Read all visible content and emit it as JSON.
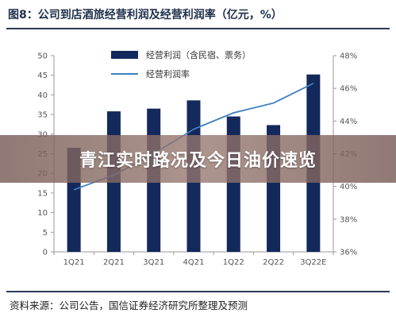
{
  "figure_title": "图8：公司到店酒旅经营利润及经营利润率（亿元，%）",
  "source": "资料来源：公司公告，国信证券经济研究所整理及预测",
  "overlay_banner": "青江实时路况及今日油价速览",
  "colors": {
    "bar": "#13295b",
    "line": "#3d7fbd",
    "rule": "#2a3b5a"
  },
  "chart_data": {
    "type": "bar",
    "categories": [
      "1Q21",
      "2Q21",
      "3Q21",
      "4Q21",
      "1Q22",
      "2Q22",
      "3Q22E"
    ],
    "series": [
      {
        "name": "经营利润（含民宿、票务）",
        "type": "bar",
        "axis": "left",
        "values": [
          26.5,
          35.8,
          36.5,
          38.6,
          34.5,
          32.3,
          45.2
        ]
      },
      {
        "name": "经营利润率",
        "type": "line",
        "axis": "right",
        "values": [
          39.8,
          40.7,
          42.0,
          43.5,
          44.5,
          45.1,
          46.3
        ]
      }
    ],
    "y_left": {
      "min": 0,
      "max": 50,
      "ticks": [
        0,
        5,
        10,
        15,
        20,
        25,
        30,
        35,
        40,
        45,
        50
      ]
    },
    "y_right": {
      "min": 36,
      "max": 48,
      "ticks": [
        "36%",
        "38%",
        "40%",
        "42%",
        "44%",
        "46%",
        "48%"
      ]
    },
    "legend_position": "top-center",
    "grid": false
  }
}
